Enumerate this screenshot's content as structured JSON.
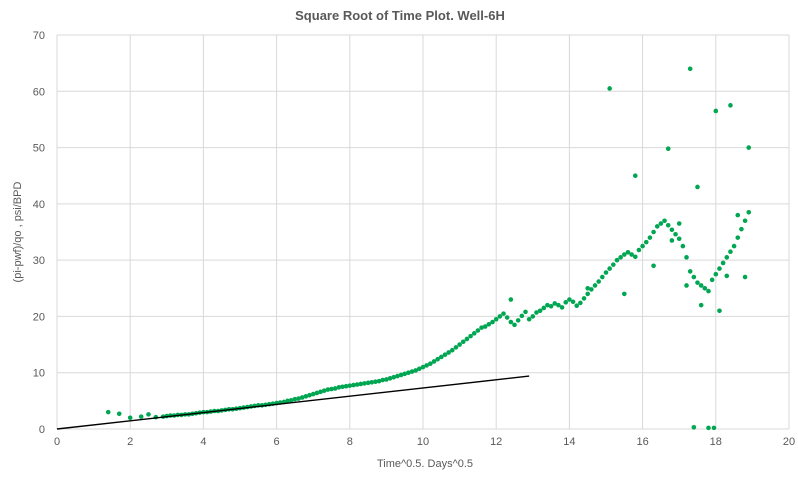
{
  "chart_data": {
    "type": "scatter",
    "title": "Square Root of Time Plot. Well-6H",
    "xlabel": "Time^0.5. Days^0.5",
    "ylabel": "(pi-pwf)/qo , psi/BPD",
    "xlim": [
      0,
      20
    ],
    "ylim": [
      0,
      70
    ],
    "x_ticks": [
      0,
      2,
      4,
      6,
      8,
      10,
      12,
      14,
      16,
      18,
      20
    ],
    "y_ticks": [
      0,
      10,
      20,
      30,
      40,
      50,
      60,
      70
    ],
    "grid": true,
    "legend": "none",
    "colors": {
      "points": "#00a651",
      "trend": "#000000",
      "grid": "#d9d9d9",
      "text": "#595959"
    },
    "trendline": {
      "x": [
        0,
        12.9
      ],
      "y": [
        0,
        9.4
      ]
    },
    "x": [
      1.4,
      1.7,
      2.0,
      2.3,
      2.5,
      2.7,
      2.9,
      3.0,
      3.1,
      3.2,
      3.3,
      3.4,
      3.5,
      3.6,
      3.7,
      3.8,
      3.9,
      4.0,
      4.1,
      4.2,
      4.3,
      4.4,
      4.5,
      4.6,
      4.7,
      4.8,
      4.9,
      5.0,
      5.1,
      5.2,
      5.3,
      5.4,
      5.5,
      5.6,
      5.7,
      5.8,
      5.9,
      6.0,
      6.1,
      6.2,
      6.3,
      6.4,
      6.5,
      6.6,
      6.7,
      6.8,
      6.9,
      7.0,
      7.1,
      7.2,
      7.3,
      7.4,
      7.5,
      7.6,
      7.7,
      7.8,
      7.9,
      8.0,
      8.1,
      8.2,
      8.3,
      8.4,
      8.5,
      8.6,
      8.7,
      8.8,
      8.9,
      9.0,
      9.1,
      9.2,
      9.3,
      9.4,
      9.5,
      9.6,
      9.7,
      9.8,
      9.9,
      10.0,
      10.1,
      10.2,
      10.3,
      10.4,
      10.5,
      10.6,
      10.7,
      10.8,
      10.9,
      11.0,
      11.1,
      11.2,
      11.3,
      11.4,
      11.5,
      11.6,
      11.7,
      11.8,
      11.9,
      12.0,
      12.1,
      12.2,
      12.3,
      12.4,
      12.5,
      12.6,
      12.7,
      12.8,
      12.9,
      13.0,
      13.1,
      13.2,
      13.3,
      13.4,
      13.5,
      13.6,
      13.7,
      13.8,
      13.9,
      14.0,
      14.1,
      14.2,
      14.3,
      14.4,
      14.5,
      14.6,
      14.7,
      14.8,
      14.9,
      15.0,
      15.1,
      15.2,
      15.3,
      15.4,
      15.5,
      15.6,
      15.7,
      15.8,
      15.9,
      16.0,
      16.1,
      16.2,
      16.3,
      16.4,
      16.5,
      16.6,
      16.7,
      16.8,
      16.9,
      17.0,
      17.1,
      17.2,
      17.3,
      17.4,
      17.5,
      17.6,
      17.7,
      17.8,
      17.9,
      18.0,
      18.1,
      18.2,
      18.3,
      18.4,
      18.5,
      18.6,
      18.7,
      18.8,
      18.9,
      15.1,
      15.8,
      16.7,
      17.3,
      17.5,
      18.0,
      18.4,
      18.9,
      12.4,
      14.5,
      16.3,
      16.8,
      17.0,
      17.6,
      18.1,
      18.6,
      17.4,
      17.8,
      17.95,
      15.5,
      17.2,
      18.3,
      18.8
    ],
    "y": [
      3.0,
      2.7,
      2.0,
      2.2,
      2.6,
      2.1,
      2.2,
      2.3,
      2.4,
      2.4,
      2.5,
      2.5,
      2.6,
      2.6,
      2.7,
      2.8,
      2.9,
      3.0,
      3.0,
      3.1,
      3.2,
      3.2,
      3.3,
      3.4,
      3.5,
      3.5,
      3.6,
      3.7,
      3.8,
      3.9,
      4.0,
      4.1,
      4.2,
      4.2,
      4.3,
      4.4,
      4.5,
      4.6,
      4.7,
      4.8,
      5.0,
      5.1,
      5.3,
      5.4,
      5.6,
      5.8,
      6.0,
      6.2,
      6.4,
      6.6,
      6.8,
      7.0,
      7.1,
      7.2,
      7.4,
      7.5,
      7.6,
      7.7,
      7.8,
      7.9,
      8.0,
      8.1,
      8.2,
      8.3,
      8.4,
      8.5,
      8.7,
      8.8,
      9.0,
      9.2,
      9.4,
      9.6,
      9.8,
      10.0,
      10.2,
      10.4,
      10.7,
      11.0,
      11.3,
      11.6,
      12.0,
      12.4,
      12.8,
      13.2,
      13.6,
      14.0,
      14.5,
      15.0,
      15.5,
      16.0,
      16.5,
      17.0,
      17.5,
      18.0,
      18.2,
      18.6,
      19.0,
      19.5,
      20.0,
      20.5,
      19.8,
      19.0,
      18.5,
      19.3,
      20.1,
      20.8,
      19.5,
      20.0,
      20.7,
      21.0,
      21.5,
      22.0,
      21.8,
      22.3,
      22.0,
      21.6,
      22.5,
      23.0,
      22.6,
      21.9,
      22.4,
      23.2,
      24.0,
      24.8,
      25.5,
      26.2,
      27.0,
      27.8,
      28.5,
      29.2,
      30.0,
      30.5,
      31.0,
      31.4,
      31.0,
      30.6,
      31.8,
      32.5,
      33.2,
      34.0,
      35.0,
      36.0,
      36.5,
      37.0,
      36.2,
      35.4,
      34.6,
      33.8,
      32.5,
      30.5,
      28.0,
      27.0,
      26.0,
      25.5,
      25.0,
      24.5,
      26.5,
      27.5,
      28.5,
      29.5,
      30.5,
      31.5,
      32.5,
      34.0,
      35.5,
      37.0,
      38.5,
      60.5,
      45.0,
      49.8,
      64.0,
      43.0,
      56.5,
      57.5,
      50.0,
      23.0,
      25.0,
      29.0,
      33.5,
      36.5,
      22.0,
      21.0,
      38.0,
      0.3,
      0.2,
      0.2,
      24.0,
      25.5,
      27.2,
      27.0
    ]
  }
}
